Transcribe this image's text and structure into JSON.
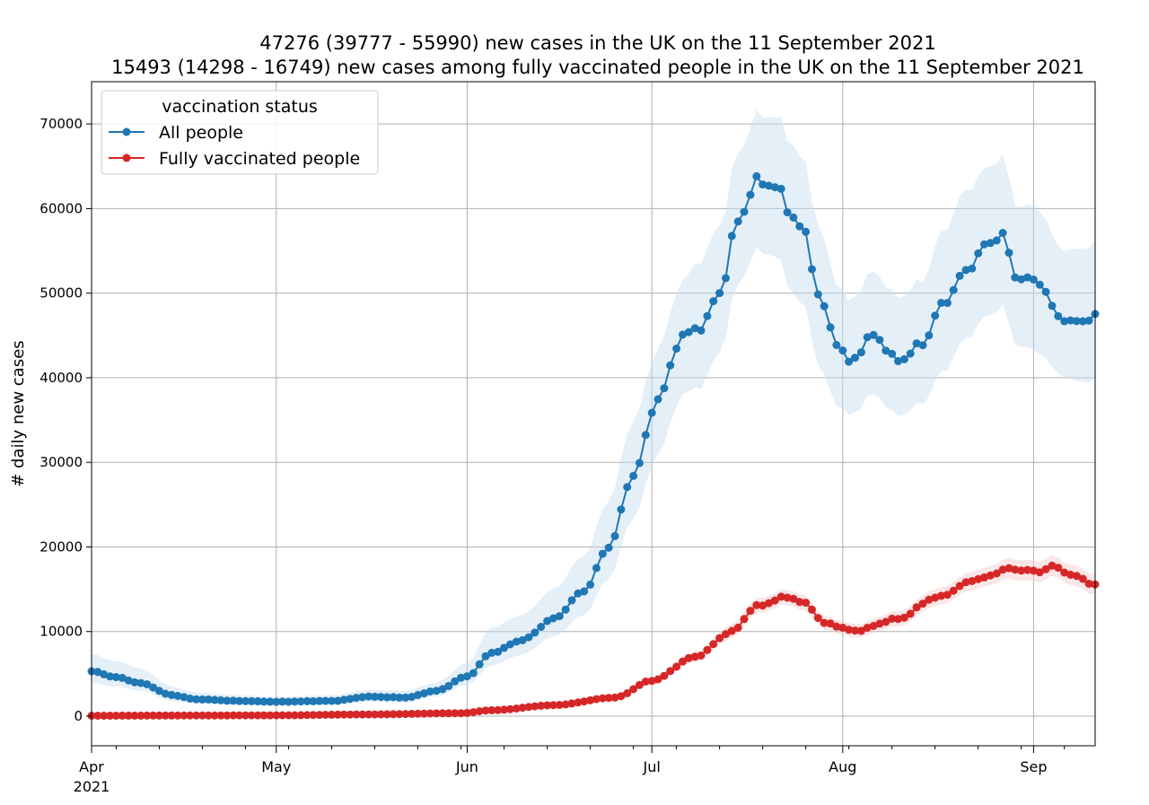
{
  "chart_data": {
    "type": "line",
    "title": "47276 (39777 - 55990) new cases in the UK on the 11 September 2021",
    "subtitle": "15493 (14298 - 16749) new cases among fully vaccinated people in the UK on the 11 September 2021",
    "xlabel": "",
    "ylabel": "# daily new cases",
    "x_start": "2021-04-01",
    "x_end": "2021-09-11",
    "xlim": [
      "2021-04-01",
      "2021-09-11"
    ],
    "ylim": [
      -3500,
      75000
    ],
    "grid": true,
    "legend": {
      "title": "vaccination status",
      "placement": "top-left"
    },
    "x_ticks": [
      {
        "date": "2021-04-01",
        "label": "Apr",
        "sublabel": "2021"
      },
      {
        "date": "2021-05-01",
        "label": "May"
      },
      {
        "date": "2021-06-01",
        "label": "Jun"
      },
      {
        "date": "2021-07-01",
        "label": "Jul"
      },
      {
        "date": "2021-08-01",
        "label": "Aug"
      },
      {
        "date": "2021-09-01",
        "label": "Sep"
      }
    ],
    "y_ticks": [
      0,
      10000,
      20000,
      30000,
      40000,
      50000,
      60000,
      70000
    ],
    "series": [
      {
        "name": "All people",
        "color": "#1f77b4",
        "band_color": "#c6dbef",
        "keypoints": [
          [
            "2021-04-01",
            5300,
            3900,
            7300
          ],
          [
            "2021-04-05",
            4600,
            3500,
            6500
          ],
          [
            "2021-04-09",
            3900,
            3000,
            5600
          ],
          [
            "2021-04-14",
            2500,
            1800,
            3500
          ],
          [
            "2021-04-18",
            2000,
            1500,
            2800
          ],
          [
            "2021-04-25",
            1800,
            1300,
            2500
          ],
          [
            "2021-05-01",
            1700,
            1200,
            2300
          ],
          [
            "2021-05-10",
            1800,
            1300,
            2500
          ],
          [
            "2021-05-16",
            2300,
            1700,
            3100
          ],
          [
            "2021-05-22",
            2200,
            1600,
            3000
          ],
          [
            "2021-05-27",
            3000,
            2300,
            4000
          ],
          [
            "2021-06-01",
            4700,
            3700,
            6300
          ],
          [
            "2021-06-05",
            7500,
            6000,
            10500
          ],
          [
            "2021-06-10",
            9000,
            7300,
            12000
          ],
          [
            "2021-06-15",
            11500,
            9400,
            15000
          ],
          [
            "2021-06-20",
            14800,
            12000,
            19000
          ],
          [
            "2021-06-24",
            20000,
            16300,
            25500
          ],
          [
            "2021-06-28",
            28500,
            23500,
            35000
          ],
          [
            "2021-07-02",
            37500,
            31000,
            43500
          ],
          [
            "2021-07-06",
            45000,
            38000,
            51500
          ],
          [
            "2021-07-09",
            46000,
            39000,
            54000
          ],
          [
            "2021-07-12",
            50000,
            43000,
            58000
          ],
          [
            "2021-07-15",
            58500,
            51000,
            66500
          ],
          [
            "2021-07-18",
            63200,
            55000,
            71000
          ],
          [
            "2021-07-21",
            62700,
            54500,
            71000
          ],
          [
            "2021-07-24",
            59000,
            50000,
            67500
          ],
          [
            "2021-07-26",
            56800,
            48000,
            65000
          ],
          [
            "2021-07-28",
            49800,
            41500,
            58000
          ],
          [
            "2021-07-31",
            44300,
            37000,
            51500
          ],
          [
            "2021-08-02",
            41800,
            35500,
            49000
          ],
          [
            "2021-08-06",
            45000,
            38000,
            52500
          ],
          [
            "2021-08-10",
            42000,
            35500,
            49500
          ],
          [
            "2021-08-14",
            44000,
            37000,
            51500
          ],
          [
            "2021-08-17",
            48500,
            40500,
            57000
          ],
          [
            "2021-08-21",
            52500,
            44500,
            62000
          ],
          [
            "2021-08-24",
            55500,
            47000,
            64500
          ],
          [
            "2021-08-27",
            57000,
            48500,
            66200
          ],
          [
            "2021-08-29",
            52000,
            44000,
            60500
          ],
          [
            "2021-09-02",
            51300,
            43000,
            60000
          ],
          [
            "2021-09-05",
            47200,
            40500,
            55500
          ],
          [
            "2021-09-08",
            46500,
            39500,
            55000
          ],
          [
            "2021-09-11",
            47276,
            39777,
            55990
          ]
        ]
      },
      {
        "name": "Fully vaccinated people",
        "color": "#d62728",
        "band_color": "#f4c7c8",
        "keypoints": [
          [
            "2021-04-01",
            50,
            0,
            150
          ],
          [
            "2021-04-15",
            80,
            0,
            200
          ],
          [
            "2021-05-01",
            100,
            0,
            250
          ],
          [
            "2021-05-15",
            200,
            100,
            350
          ],
          [
            "2021-05-31",
            350,
            250,
            500
          ],
          [
            "2021-06-05",
            700,
            550,
            900
          ],
          [
            "2021-06-15",
            1300,
            1100,
            1600
          ],
          [
            "2021-06-25",
            2200,
            1900,
            2500
          ],
          [
            "2021-07-01",
            4200,
            3800,
            4600
          ],
          [
            "2021-07-08",
            7000,
            6400,
            7600
          ],
          [
            "2021-07-14",
            10000,
            9200,
            10800
          ],
          [
            "2021-07-18",
            13000,
            12100,
            13900
          ],
          [
            "2021-07-23",
            14100,
            13200,
            15000
          ],
          [
            "2021-07-26",
            13300,
            12400,
            14200
          ],
          [
            "2021-07-29",
            11000,
            10200,
            11800
          ],
          [
            "2021-08-03",
            10100,
            9300,
            10900
          ],
          [
            "2021-08-10",
            11500,
            10600,
            12400
          ],
          [
            "2021-08-16",
            14000,
            13000,
            15000
          ],
          [
            "2021-08-23",
            16200,
            15100,
            17300
          ],
          [
            "2021-08-28",
            17400,
            16200,
            18600
          ],
          [
            "2021-09-02",
            17100,
            15900,
            18300
          ],
          [
            "2021-09-04",
            17700,
            16500,
            18900
          ],
          [
            "2021-09-08",
            16500,
            15300,
            17700
          ],
          [
            "2021-09-11",
            15493,
            14298,
            16749
          ]
        ]
      }
    ]
  }
}
